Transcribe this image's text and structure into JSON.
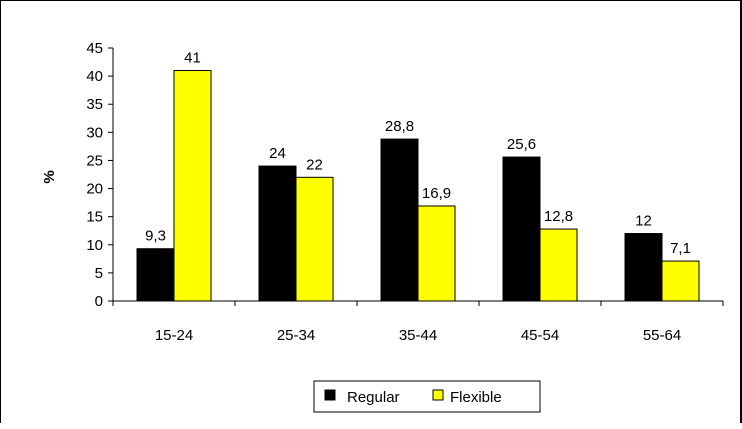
{
  "chart_data": {
    "type": "bar",
    "title": "",
    "xlabel": "",
    "ylabel": "%",
    "ylim": [
      0,
      45
    ],
    "yticks": [
      0,
      5,
      10,
      15,
      20,
      25,
      30,
      35,
      40,
      45
    ],
    "grid": false,
    "legend_position": "bottom",
    "categories": [
      "15-24",
      "25-34",
      "35-44",
      "45-54",
      "55-64"
    ],
    "series": [
      {
        "name": "Regular",
        "color": "#000000",
        "values": [
          9.3,
          24,
          28.8,
          25.6,
          12
        ],
        "labels": [
          "9,3",
          "24",
          "28,8",
          "25,6",
          "12"
        ]
      },
      {
        "name": "Flexible",
        "color": "#FFFF00",
        "values": [
          41,
          22,
          16.9,
          12.8,
          7.1
        ],
        "labels": [
          "41",
          "22",
          "16,9",
          "12,8",
          "7,1"
        ]
      }
    ]
  }
}
